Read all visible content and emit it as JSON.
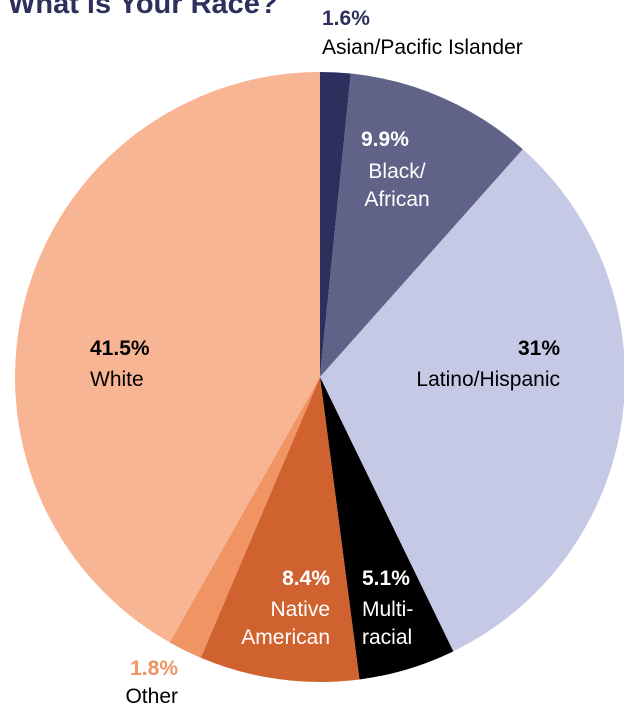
{
  "title": "What is Your Race?",
  "chart_data": {
    "type": "pie",
    "title": "What is Your Race?",
    "start_angle_deg": 0,
    "direction": "clockwise",
    "slices": [
      {
        "label": "Asian/Pacific Islander",
        "value": 1.6,
        "value_label": "1.6%",
        "color": "#2d2f5c",
        "label_color": "#000000",
        "pct_color": "#2d2f5c"
      },
      {
        "label": "Black/ African",
        "value": 9.9,
        "value_label": "9.9%",
        "color": "#616288",
        "label_color": "#ffffff",
        "pct_color": "#ffffff"
      },
      {
        "label": "Latino/Hispanic",
        "value": 31,
        "value_label": "31%",
        "color": "#c6c9e6",
        "label_color": "#000000",
        "pct_color": "#000000"
      },
      {
        "label": "Multi- racial",
        "value": 5.1,
        "value_label": "5.1%",
        "color": "#000000",
        "label_color": "#ffffff",
        "pct_color": "#ffffff"
      },
      {
        "label": "Native American",
        "value": 8.4,
        "value_label": "8.4%",
        "color": "#d06230",
        "label_color": "#ffffff",
        "pct_color": "#ffffff"
      },
      {
        "label": "Other",
        "value": 1.8,
        "value_label": "1.8%",
        "color": "#f09464",
        "label_color": "#000000",
        "pct_color": "#f09464"
      },
      {
        "label": "White",
        "value": 41.5,
        "value_label": "41.5%",
        "color": "#f8b593",
        "label_color": "#000000",
        "pct_color": "#000000"
      }
    ]
  }
}
